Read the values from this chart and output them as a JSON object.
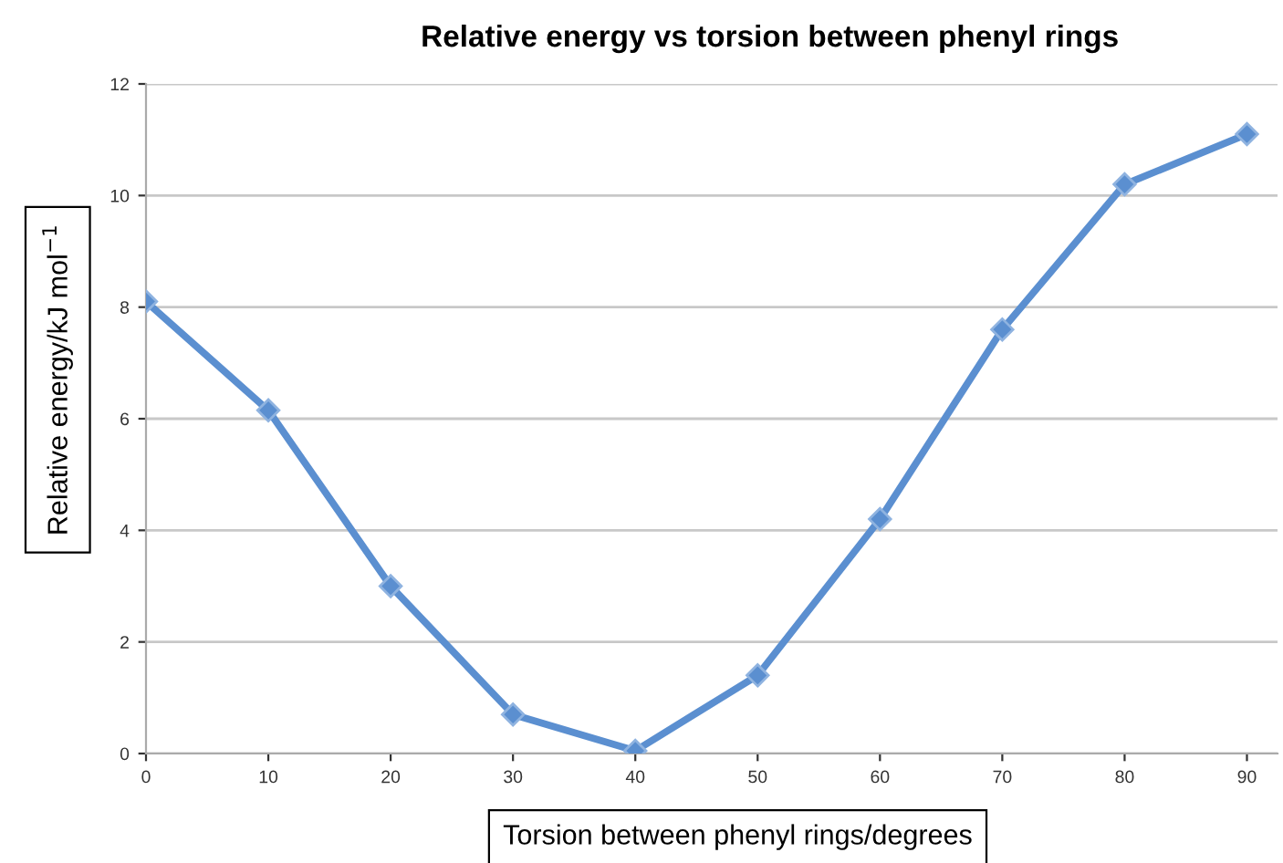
{
  "chart_data": {
    "type": "line",
    "title": "Relative energy vs torsion between phenyl rings",
    "xlabel": "Torsion between phenyl rings/degrees",
    "ylabel": "Relative energy/kJ mol$^{−1}$",
    "x": [
      0,
      10,
      20,
      30,
      40,
      50,
      60,
      70,
      80,
      90
    ],
    "series": [
      {
        "color": "#5b8fd0",
        "values": [
          8.1,
          6.15,
          3.0,
          0.7,
          0.05,
          1.4,
          4.2,
          7.6,
          10.2,
          11.1
        ]
      }
    ],
    "xlim": [
      0,
      92.5
    ],
    "xticks": [
      0,
      10,
      20,
      30,
      40,
      50,
      60,
      70,
      80,
      90
    ],
    "ylim": [
      0,
      12
    ],
    "yticks": [
      0,
      2,
      4,
      6,
      8,
      10,
      12
    ],
    "grid": "y",
    "marker": "diamond",
    "line_style": "solid"
  }
}
